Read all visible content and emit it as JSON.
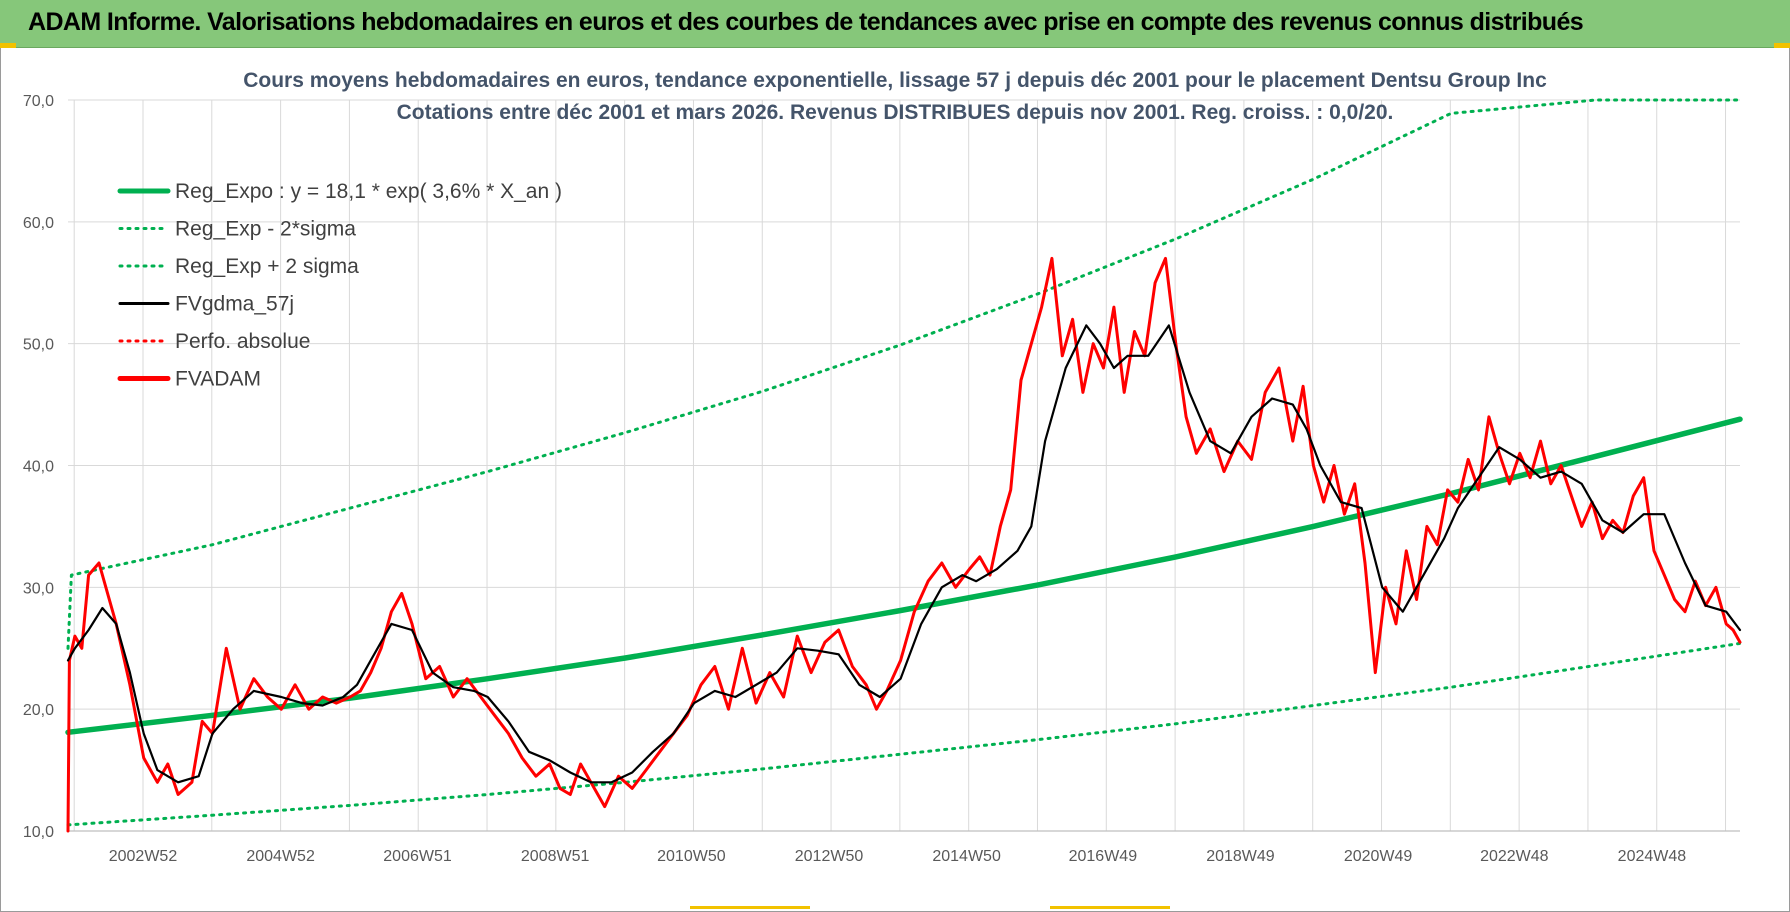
{
  "banner": {
    "title": "ADAM Informe. Valorisations hebdomadaires en euros et des courbes de tendances avec prise en compte des revenus connus distribués"
  },
  "colors": {
    "banner": "#86c77a",
    "trend_green": "#00b050",
    "fv_black": "#000000",
    "adam_red": "#ff0000",
    "title_slate": "#44546a",
    "grid": "#d9d9d9"
  },
  "chart_data": {
    "type": "line",
    "title": "Cours moyens hebdomadaires en euros, tendance exponentielle, lissage 57 j depuis déc 2001 pour le placement Dentsu Group Inc",
    "subtitle": "Cotations entre déc 2001 et mars 2026.  Revenus DISTRIBUES depuis nov 2001.  Reg. croiss. : 0,0/20.",
    "xlabel": "",
    "ylabel": "",
    "ylim": [
      10,
      70
    ],
    "xlim": [
      2001.9,
      2026.2
    ],
    "grid": true,
    "legend_position": "top-left",
    "y_ticks": [
      "10,0",
      "20,0",
      "30,0",
      "40,0",
      "50,0",
      "60,0",
      "70,0"
    ],
    "x_ticks": [
      {
        "label": "2002W52",
        "x": 2002.99
      },
      {
        "label": "2004W52",
        "x": 2004.99
      },
      {
        "label": "2006W51",
        "x": 2006.98
      },
      {
        "label": "2008W51",
        "x": 2008.98
      },
      {
        "label": "2010W50",
        "x": 2010.96
      },
      {
        "label": "2012W50",
        "x": 2012.96
      },
      {
        "label": "2014W50",
        "x": 2014.96
      },
      {
        "label": "2016W49",
        "x": 2016.94
      },
      {
        "label": "2018W49",
        "x": 2018.94
      },
      {
        "label": "2020W49",
        "x": 2020.94
      },
      {
        "label": "2022W48",
        "x": 2022.92
      },
      {
        "label": "2024W48",
        "x": 2024.92
      }
    ],
    "series": [
      {
        "name": "Reg_Expo : y = 18,1 * exp( 3,6% *  X_an )",
        "style": "solid-thick",
        "color": "#00b050",
        "x": [
          2001.9,
          2004,
          2006,
          2008,
          2010,
          2012,
          2014,
          2016,
          2018,
          2020,
          2022,
          2024,
          2026.2
        ],
        "values": [
          18.1,
          19.5,
          20.9,
          22.5,
          24.2,
          26.1,
          28.1,
          30.2,
          32.5,
          35.0,
          37.7,
          40.6,
          43.8
        ]
      },
      {
        "name": "Reg_Exp - 2*sigma",
        "style": "dotted",
        "color": "#00b050",
        "x": [
          2001.9,
          2004,
          2006,
          2008,
          2010,
          2012,
          2014,
          2016,
          2018,
          2020,
          2022,
          2024,
          2026.2
        ],
        "values": [
          10.5,
          11.3,
          12.1,
          13.0,
          14.0,
          15.1,
          16.3,
          17.5,
          18.8,
          20.3,
          21.8,
          23.5,
          25.4
        ]
      },
      {
        "name": "Reg_Exp + 2 sigma",
        "style": "dotted",
        "color": "#00b050",
        "x": [
          2001.9,
          2001.95,
          2004,
          2006,
          2008,
          2010,
          2012,
          2014,
          2016,
          2018,
          2020,
          2022,
          2024.1,
          2026.2
        ],
        "values": [
          25.0,
          31.0,
          33.5,
          36.5,
          39.5,
          42.7,
          46.1,
          49.9,
          54.1,
          58.6,
          63.5,
          68.9,
          70.0,
          70.0
        ]
      },
      {
        "name": "FVgdma_57j",
        "style": "solid",
        "color": "#000000",
        "x": [
          2001.9,
          2002.0,
          2002.2,
          2002.4,
          2002.6,
          2002.8,
          2003.0,
          2003.2,
          2003.5,
          2003.8,
          2004.0,
          2004.3,
          2004.6,
          2005.0,
          2005.3,
          2005.6,
          2005.9,
          2006.1,
          2006.3,
          2006.6,
          2006.9,
          2007.2,
          2007.5,
          2007.8,
          2008.0,
          2008.3,
          2008.6,
          2008.9,
          2009.2,
          2009.5,
          2009.8,
          2010.1,
          2010.4,
          2010.7,
          2011.0,
          2011.3,
          2011.6,
          2011.9,
          2012.2,
          2012.5,
          2012.8,
          2013.1,
          2013.4,
          2013.7,
          2014.0,
          2014.3,
          2014.6,
          2014.9,
          2015.1,
          2015.4,
          2015.7,
          2015.9,
          2016.1,
          2016.4,
          2016.7,
          2016.9,
          2017.1,
          2017.3,
          2017.6,
          2017.9,
          2018.2,
          2018.5,
          2018.8,
          2019.1,
          2019.4,
          2019.7,
          2019.9,
          2020.1,
          2020.4,
          2020.7,
          2021.0,
          2021.3,
          2021.6,
          2021.9,
          2022.1,
          2022.4,
          2022.7,
          2023.0,
          2023.3,
          2023.6,
          2023.9,
          2024.2,
          2024.5,
          2024.8,
          2025.1,
          2025.4,
          2025.7,
          2026.0,
          2026.2
        ],
        "values": [
          24.0,
          25.0,
          26.5,
          28.3,
          27.0,
          23.0,
          18.0,
          15.0,
          14.0,
          14.5,
          18.0,
          20.0,
          21.5,
          21.0,
          20.5,
          20.3,
          21.0,
          22.0,
          24.0,
          27.0,
          26.5,
          23.0,
          21.8,
          21.5,
          21.0,
          19.0,
          16.5,
          15.8,
          14.8,
          14.0,
          14.0,
          14.8,
          16.5,
          18.0,
          20.5,
          21.5,
          21.0,
          22.0,
          23.0,
          25.0,
          24.8,
          24.5,
          22.0,
          21.0,
          22.5,
          27.0,
          30.0,
          31.0,
          30.5,
          31.5,
          33.0,
          35.0,
          42.0,
          48.0,
          51.5,
          50.0,
          48.0,
          49.0,
          49.0,
          51.5,
          46.0,
          42.0,
          41.0,
          44.0,
          45.5,
          45.0,
          43.0,
          40.0,
          37.0,
          36.5,
          30.0,
          28.0,
          31.0,
          34.0,
          36.5,
          39.0,
          41.5,
          40.5,
          39.0,
          39.5,
          38.5,
          35.5,
          34.5,
          36.0,
          36.0,
          32.0,
          28.5,
          28.0,
          26.5
        ]
      },
      {
        "name": "Perfo. absolue",
        "style": "dotted",
        "color": "#ff0000",
        "x": [],
        "values": []
      },
      {
        "name": "FVADAM",
        "style": "solid-thick",
        "color": "#ff0000",
        "x": [
          2001.9,
          2001.92,
          2002.0,
          2002.1,
          2002.2,
          2002.35,
          2002.5,
          2002.6,
          2002.8,
          2003.0,
          2003.2,
          2003.35,
          2003.5,
          2003.7,
          2003.85,
          2004.0,
          2004.2,
          2004.4,
          2004.6,
          2004.8,
          2005.0,
          2005.2,
          2005.4,
          2005.6,
          2005.8,
          2006.0,
          2006.15,
          2006.3,
          2006.45,
          2006.6,
          2006.75,
          2006.9,
          2007.1,
          2007.3,
          2007.5,
          2007.7,
          2007.9,
          2008.1,
          2008.3,
          2008.5,
          2008.7,
          2008.9,
          2009.05,
          2009.2,
          2009.35,
          2009.5,
          2009.7,
          2009.9,
          2010.1,
          2010.3,
          2010.5,
          2010.7,
          2010.9,
          2011.1,
          2011.3,
          2011.5,
          2011.7,
          2011.9,
          2012.1,
          2012.3,
          2012.5,
          2012.7,
          2012.9,
          2013.1,
          2013.3,
          2013.5,
          2013.65,
          2013.8,
          2014.0,
          2014.2,
          2014.4,
          2014.6,
          2014.8,
          2015.0,
          2015.15,
          2015.3,
          2015.45,
          2015.6,
          2015.75,
          2015.9,
          2016.05,
          2016.2,
          2016.35,
          2016.5,
          2016.65,
          2016.8,
          2016.95,
          2017.1,
          2017.25,
          2017.4,
          2017.55,
          2017.7,
          2017.85,
          2018.0,
          2018.15,
          2018.3,
          2018.5,
          2018.7,
          2018.9,
          2019.1,
          2019.3,
          2019.5,
          2019.7,
          2019.85,
          2020.0,
          2020.15,
          2020.3,
          2020.45,
          2020.6,
          2020.75,
          2020.9,
          2021.05,
          2021.2,
          2021.35,
          2021.5,
          2021.65,
          2021.8,
          2021.95,
          2022.1,
          2022.25,
          2022.4,
          2022.55,
          2022.7,
          2022.85,
          2023.0,
          2023.15,
          2023.3,
          2023.45,
          2023.6,
          2023.75,
          2023.9,
          2024.05,
          2024.2,
          2024.35,
          2024.5,
          2024.65,
          2024.8,
          2024.95,
          2025.1,
          2025.25,
          2025.4,
          2025.55,
          2025.7,
          2025.85,
          2026.0,
          2026.1,
          2026.2
        ],
        "values": [
          10.0,
          24.0,
          26.0,
          25.0,
          31.0,
          32.0,
          29.0,
          27.0,
          22.0,
          16.0,
          14.0,
          15.5,
          13.0,
          14.0,
          19.0,
          18.0,
          25.0,
          20.0,
          22.5,
          21.0,
          20.0,
          22.0,
          20.0,
          21.0,
          20.5,
          21.0,
          21.5,
          23.0,
          25.0,
          28.0,
          29.5,
          27.0,
          22.5,
          23.5,
          21.0,
          22.5,
          21.0,
          19.5,
          18.0,
          16.0,
          14.5,
          15.5,
          13.5,
          13.0,
          15.5,
          14.0,
          12.0,
          14.5,
          13.5,
          15.0,
          16.5,
          18.0,
          19.5,
          22.0,
          23.5,
          20.0,
          25.0,
          20.5,
          23.0,
          21.0,
          26.0,
          23.0,
          25.5,
          26.5,
          23.5,
          22.0,
          20.0,
          21.5,
          24.0,
          28.0,
          30.5,
          32.0,
          30.0,
          31.5,
          32.5,
          31.0,
          35.0,
          38.0,
          47.0,
          50.0,
          53.0,
          57.0,
          49.0,
          52.0,
          46.0,
          50.0,
          48.0,
          53.0,
          46.0,
          51.0,
          49.0,
          55.0,
          57.0,
          50.0,
          44.0,
          41.0,
          43.0,
          39.5,
          42.0,
          40.5,
          46.0,
          48.0,
          42.0,
          46.5,
          40.0,
          37.0,
          40.0,
          36.0,
          38.5,
          32.0,
          23.0,
          30.0,
          27.0,
          33.0,
          29.0,
          35.0,
          33.5,
          38.0,
          37.0,
          40.5,
          38.0,
          44.0,
          41.0,
          38.5,
          41.0,
          39.0,
          42.0,
          38.5,
          40.0,
          37.5,
          35.0,
          37.0,
          34.0,
          35.5,
          34.5,
          37.5,
          39.0,
          33.0,
          31.0,
          29.0,
          28.0,
          30.5,
          28.5,
          30.0,
          27.0,
          26.5,
          25.5
        ]
      }
    ]
  }
}
